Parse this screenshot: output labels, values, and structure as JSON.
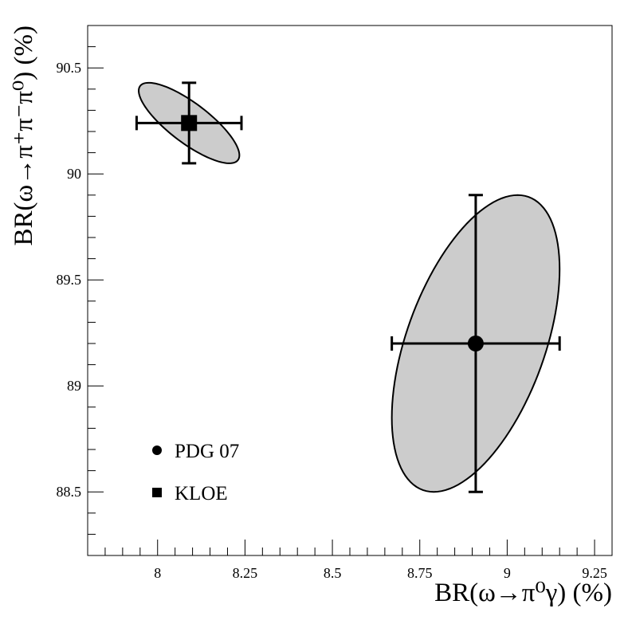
{
  "chart_data": {
    "type": "scatter",
    "title": "",
    "xlabel": "BR(ω→π⁰γ) (%)",
    "ylabel": "BR(ω→π⁺π⁻π⁰) (%)",
    "xlim": [
      7.8,
      9.3
    ],
    "ylim": [
      88.2,
      90.7
    ],
    "x_ticks": [
      8,
      8.25,
      8.5,
      8.75,
      9,
      9.25
    ],
    "x_tick_labels": [
      "8",
      "8.25",
      "8.5",
      "8.75",
      "9",
      "9.25"
    ],
    "y_ticks": [
      88.5,
      89,
      89.5,
      90,
      90.5
    ],
    "y_tick_labels": [
      "88.5",
      "89",
      "89.5",
      "90",
      "90.5"
    ],
    "grid": false,
    "legend_position": "bottom-left",
    "fill_color": "#cccccc",
    "series": [
      {
        "name": "PDG 07",
        "marker": "circle",
        "x": 8.91,
        "y": 89.2,
        "x_err": 0.24,
        "y_err": 0.7,
        "ellipse": {
          "x_half_extent": 0.24,
          "y_half_extent": 0.7,
          "correlation": 0.5
        }
      },
      {
        "name": "KLOE",
        "marker": "square",
        "x": 8.09,
        "y": 90.24,
        "x_err": 0.15,
        "y_err": 0.19,
        "ellipse": {
          "x_half_extent": 0.144,
          "y_half_extent": 0.19,
          "correlation": -0.8
        }
      }
    ]
  }
}
